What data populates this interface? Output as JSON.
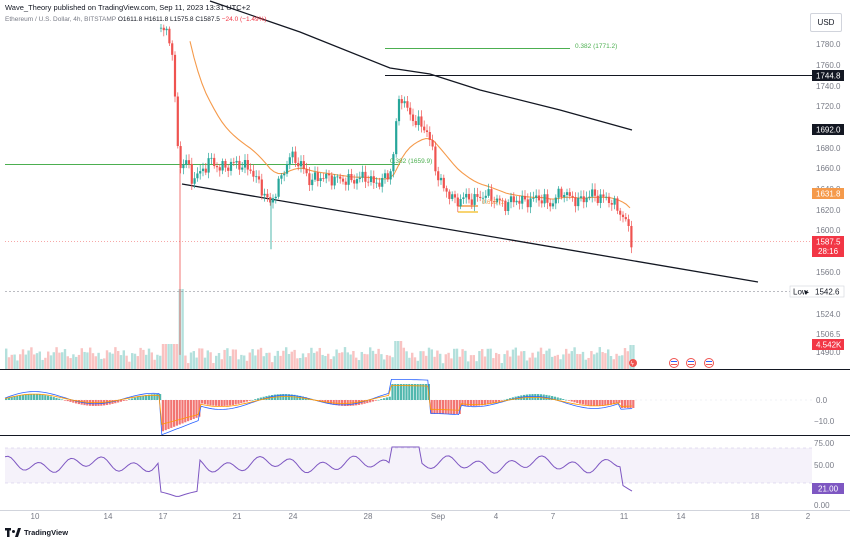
{
  "header": {
    "publisher": "Wave_Theory published on TradingView.com, Sep 11, 2023 13:31 UTC+2"
  },
  "legend": {
    "symbol": "Ethereum / U.S. Dollar, 4h, BITSTAMP",
    "open": "O1611.8",
    "high": "H1611.8",
    "low": "L1575.8",
    "close": "C1587.5",
    "change": "−24.0 (−1.49%)"
  },
  "currency_button": "USD",
  "price_axis": {
    "ticks": [
      "1780.0",
      "1760.0",
      "1740.0",
      "1720.0",
      "1700.0",
      "1680.0",
      "1660.0",
      "1640.0",
      "1620.0",
      "1600.0",
      "1580.0",
      "1560.0",
      "1524.0",
      "1506.5",
      "1490.0"
    ],
    "labels": {
      "fib_top": "1744.8",
      "upper_channel": "1692.0",
      "ema": "1631.8",
      "last_price": "1587.5",
      "countdown": "28:16",
      "low_tag": "Low",
      "low_price": "1542.6",
      "volume": "4.542K"
    }
  },
  "fib_labels": {
    "fib_382_top": "0.382 (1771.2)",
    "fib_382_mid": "0.382 (1659.9)",
    "fib_618": "0.618 (1"
  },
  "macd_axis": {
    "ticks": [
      "0.0",
      "−10.0"
    ]
  },
  "rsi_axis": {
    "ticks": [
      "75.00",
      "50.00",
      "25.00",
      "0.00"
    ],
    "value": "21.00"
  },
  "time_axis": {
    "ticks": [
      "10",
      "14",
      "17",
      "21",
      "24",
      "28",
      "Sep",
      "4",
      "7",
      "11",
      "14",
      "18",
      "2"
    ]
  },
  "footer": {
    "brand": "TradingView"
  },
  "colors": {
    "up": "#26a69a",
    "down": "#ef5350",
    "ema": "#f59a4b",
    "sma": "#2a2e39",
    "fib": "#4caf50",
    "macd": "#2962ff",
    "signal": "#ff9800",
    "rsi": "#7e57c2"
  },
  "chart_data": {
    "type": "candlestick",
    "title": "Ethereum / U.S. Dollar, 4h, BITSTAMP",
    "x": [
      "Aug 10",
      "Aug 14",
      "Aug 17",
      "Aug 21",
      "Aug 24",
      "Aug 28",
      "Sep 1",
      "Sep 4",
      "Sep 7",
      "Sep 11"
    ],
    "ylim": [
      1487,
      1795
    ],
    "last_price": 1587.5,
    "ema_last": 1631.8,
    "low_marker": 1542.6,
    "fib_levels": [
      {
        "level": 0.382,
        "price": 1771.2
      },
      {
        "level": 0.382,
        "price": 1659.9
      },
      {
        "level": 0.618,
        "price": 1620
      }
    ],
    "macd_ylim": [
      -15,
      8
    ],
    "rsi_last": 21.0,
    "rsi_ylim": [
      0,
      80
    ]
  }
}
